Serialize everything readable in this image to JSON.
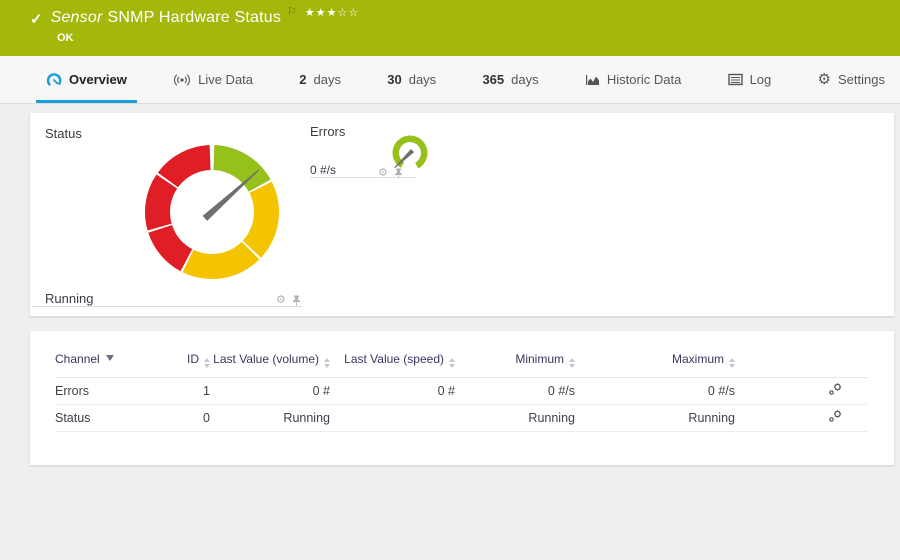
{
  "header": {
    "title_prefix": "Sensor",
    "title": "SNMP Hardware Status",
    "status": "OK",
    "stars": "★★★☆☆",
    "check_icon": "✓",
    "flag_icon": "⚐",
    "bar_color": "#a4b80c"
  },
  "tabs": [
    {
      "label": "Overview",
      "active": true
    },
    {
      "label": "Live Data"
    },
    {
      "num": "2",
      "label": "days"
    },
    {
      "num": "30",
      "label": "days"
    },
    {
      "num": "365",
      "label": "days"
    },
    {
      "label": "Historic Data"
    },
    {
      "label": "Log"
    },
    {
      "label": "Settings"
    }
  ],
  "overview": {
    "status_channel_label": "Status",
    "status_channel_value": "Running",
    "errors_channel_label": "Errors",
    "errors_channel_value": "0 #/s",
    "gear_icon_glyph": "⚙"
  },
  "chart_data": [
    {
      "type": "gauge",
      "name": "status",
      "label": "Status",
      "value": "Running",
      "needle_angle": 48,
      "needle_color": "#6f6f6f",
      "segments": [
        {
          "color": "#96c01a",
          "start": 2,
          "end": 61
        },
        {
          "color": "#f5c400",
          "start": 63,
          "end": 133
        },
        {
          "color": "#f5c400",
          "start": 135,
          "end": 206
        },
        {
          "color": "#e01e25",
          "start": 208,
          "end": 252
        },
        {
          "color": "#e01e25",
          "start": 254,
          "end": 304
        },
        {
          "color": "#e01e25",
          "start": 306,
          "end": 358
        }
      ]
    },
    {
      "type": "gauge",
      "name": "errors",
      "label": "Errors",
      "value": "0 #/s",
      "needle_angle": -134,
      "needle_color": "#6f6f6f",
      "segments": [
        {
          "color": "#96c01a",
          "start": -148,
          "end": 152
        }
      ]
    }
  ],
  "table": {
    "headers": {
      "channel": "Channel",
      "id": "ID",
      "last_volume": "Last Value (volume)",
      "last_speed": "Last Value (speed)",
      "minimum": "Minimum",
      "maximum": "Maximum"
    },
    "rows": [
      {
        "channel": "Errors",
        "id": "1",
        "last_volume": "0 #",
        "last_speed": "0 #",
        "minimum": "0 #/s",
        "maximum": "0 #/s"
      },
      {
        "channel": "Status",
        "id": "0",
        "last_volume": "Running",
        "last_speed": "",
        "minimum": "Running",
        "maximum": "Running"
      }
    ]
  },
  "colors": {
    "accent_blue": "#1a9cd6",
    "gauge_green": "#96c01a",
    "gauge_yellow": "#f5c400",
    "gauge_red": "#e01e25",
    "header_text": "#3d3460"
  }
}
